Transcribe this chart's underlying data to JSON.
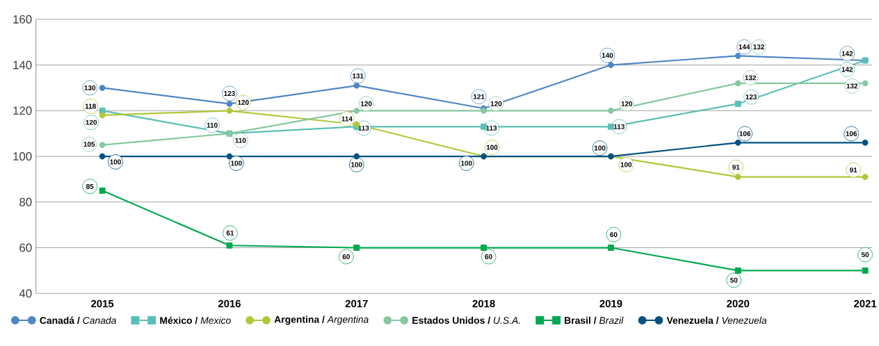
{
  "chart_data": {
    "type": "line",
    "categories": [
      "2015",
      "2016",
      "2017",
      "2018",
      "2019",
      "2020",
      "2021"
    ],
    "series": [
      {
        "name": "**Canadá /** *Canada*",
        "color": "#4f86c6",
        "marker": "circle",
        "values": [
          130,
          123,
          131,
          121,
          140,
          144,
          142
        ]
      },
      {
        "name": "**México /** *Mexico*",
        "color": "#5bbfb5",
        "marker": "square",
        "values": [
          120,
          110,
          113,
          113,
          113,
          123,
          142
        ]
      },
      {
        "name": "**Argentina /** *Argentina*",
        "color": "#afc83a",
        "marker": "circle",
        "values": [
          118,
          120,
          114,
          100,
          100,
          91,
          91
        ]
      },
      {
        "name": "**Estados Unidos /** *U.S.A.*",
        "color": "#86c8a0",
        "marker": "circle",
        "values": [
          105,
          110,
          120,
          120,
          120,
          132,
          132
        ]
      },
      {
        "name": "**Brasil /** *Brazil*",
        "color": "#00a84f",
        "marker": "square",
        "values": [
          85,
          61,
          60,
          60,
          60,
          50,
          50
        ]
      },
      {
        "name": "**Venezuela /** *Venezuela*",
        "color": "#00527f",
        "marker": "circle",
        "values": [
          100,
          100,
          100,
          100,
          100,
          106,
          106
        ]
      }
    ],
    "annotations": [
      {
        "text": "132",
        "x": "2020",
        "y": 144
      }
    ],
    "ylim": [
      40,
      160
    ],
    "yticks": [
      40,
      60,
      80,
      100,
      120,
      140,
      160
    ],
    "grid": "y",
    "legend": "bottom",
    "data_labels": true
  }
}
